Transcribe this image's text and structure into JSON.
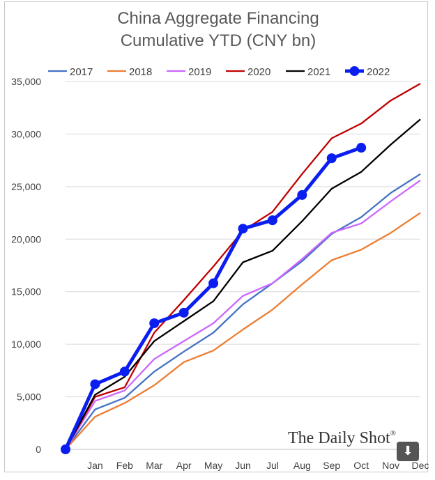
{
  "chart_data": {
    "type": "line",
    "title": [
      "China Aggregate Financing",
      "Cumulative YTD (CNY bn)"
    ],
    "xlabel": "",
    "ylabel": "",
    "categories": [
      "",
      "Jan",
      "Feb",
      "Mar",
      "Apr",
      "May",
      "Jun",
      "Jul",
      "Aug",
      "Sep",
      "Oct",
      "Nov",
      "Dec"
    ],
    "ylim": [
      0,
      35000
    ],
    "yticks": [
      0,
      5000,
      10000,
      15000,
      20000,
      25000,
      30000,
      35000
    ],
    "ytick_labels": [
      "0",
      "5,000",
      "10,000",
      "15,000",
      "20,000",
      "25,000",
      "30,000",
      "35,000"
    ],
    "grid": "horizontal",
    "legend_position": "top",
    "series": [
      {
        "name": "2017",
        "color": "#4472C4",
        "marker": false,
        "values": [
          0,
          3800,
          4900,
          7400,
          9300,
          11100,
          13800,
          15800,
          17900,
          20500,
          22100,
          24400,
          26200
        ]
      },
      {
        "name": "2018",
        "color": "#ED7D31",
        "marker": false,
        "values": [
          0,
          3100,
          4400,
          6100,
          8300,
          9400,
          11400,
          13300,
          15700,
          18000,
          19000,
          20600,
          22500
        ]
      },
      {
        "name": "2019",
        "color": "#CC66FF",
        "marker": false,
        "values": [
          0,
          4600,
          5600,
          8600,
          10300,
          12000,
          14600,
          15800,
          18100,
          20600,
          21500,
          23600,
          25600
        ]
      },
      {
        "name": "2020",
        "color": "#C00000",
        "marker": false,
        "values": [
          0,
          5000,
          5900,
          11100,
          14200,
          17400,
          20800,
          22600,
          26200,
          29600,
          31000,
          33200,
          34800
        ]
      },
      {
        "name": "2021",
        "color": "#000000",
        "marker": false,
        "values": [
          0,
          5200,
          6900,
          10300,
          12200,
          14100,
          17800,
          18900,
          21700,
          24800,
          26400,
          29000,
          31400
        ]
      },
      {
        "name": "2022",
        "color": "#0A1EF0",
        "marker": true,
        "values": [
          0,
          6200,
          7400,
          12000,
          13000,
          15800,
          21000,
          21800,
          24200,
          27700,
          28700,
          null,
          null
        ]
      }
    ]
  },
  "brand": {
    "text": "The Daily Shot",
    "mark": "®"
  },
  "download_icon": {
    "name": "download-arrow-icon",
    "glyph": "⬇"
  }
}
